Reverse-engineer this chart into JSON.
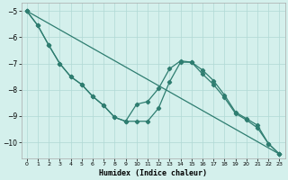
{
  "xlabel": "Humidex (Indice chaleur)",
  "bg_color": "#d4f0ec",
  "line_color": "#2e7d70",
  "grid_color": "#b0d8d4",
  "xlim": [
    -0.5,
    23.5
  ],
  "ylim": [
    -10.6,
    -4.7
  ],
  "yticks": [
    -10,
    -9,
    -8,
    -7,
    -6,
    -5
  ],
  "xticks": [
    0,
    1,
    2,
    3,
    4,
    5,
    6,
    7,
    8,
    9,
    10,
    11,
    12,
    13,
    14,
    15,
    16,
    17,
    18,
    19,
    20,
    21,
    22,
    23
  ],
  "line1_x": [
    0,
    1,
    2,
    3,
    4,
    5,
    6,
    7,
    8,
    9,
    10,
    11,
    12,
    13,
    14,
    15,
    16,
    17,
    18,
    19,
    20,
    21,
    22,
    23
  ],
  "line1_y": [
    -5.0,
    -5.55,
    -6.3,
    -7.0,
    -7.5,
    -7.8,
    -8.25,
    -8.6,
    -9.05,
    -9.2,
    -8.55,
    -8.45,
    -7.95,
    -7.2,
    -6.9,
    -6.95,
    -7.4,
    -7.8,
    -8.3,
    -8.9,
    -9.15,
    -9.45,
    -10.05,
    -10.45
  ],
  "line2_x": [
    0,
    23
  ],
  "line2_y": [
    -5.0,
    -10.45
  ],
  "line3_x": [
    0,
    1,
    2,
    3,
    4,
    5,
    6,
    7,
    8,
    9,
    10,
    11,
    12,
    13,
    14,
    15,
    16,
    17,
    18,
    19,
    20,
    21,
    22,
    23
  ],
  "line3_y": [
    -5.0,
    -5.55,
    -6.3,
    -7.0,
    -7.5,
    -7.8,
    -8.25,
    -8.6,
    -9.05,
    -9.2,
    -9.2,
    -9.2,
    -8.7,
    -7.7,
    -6.95,
    -6.95,
    -7.25,
    -7.65,
    -8.2,
    -8.85,
    -9.1,
    -9.35,
    -10.05,
    -10.45
  ]
}
